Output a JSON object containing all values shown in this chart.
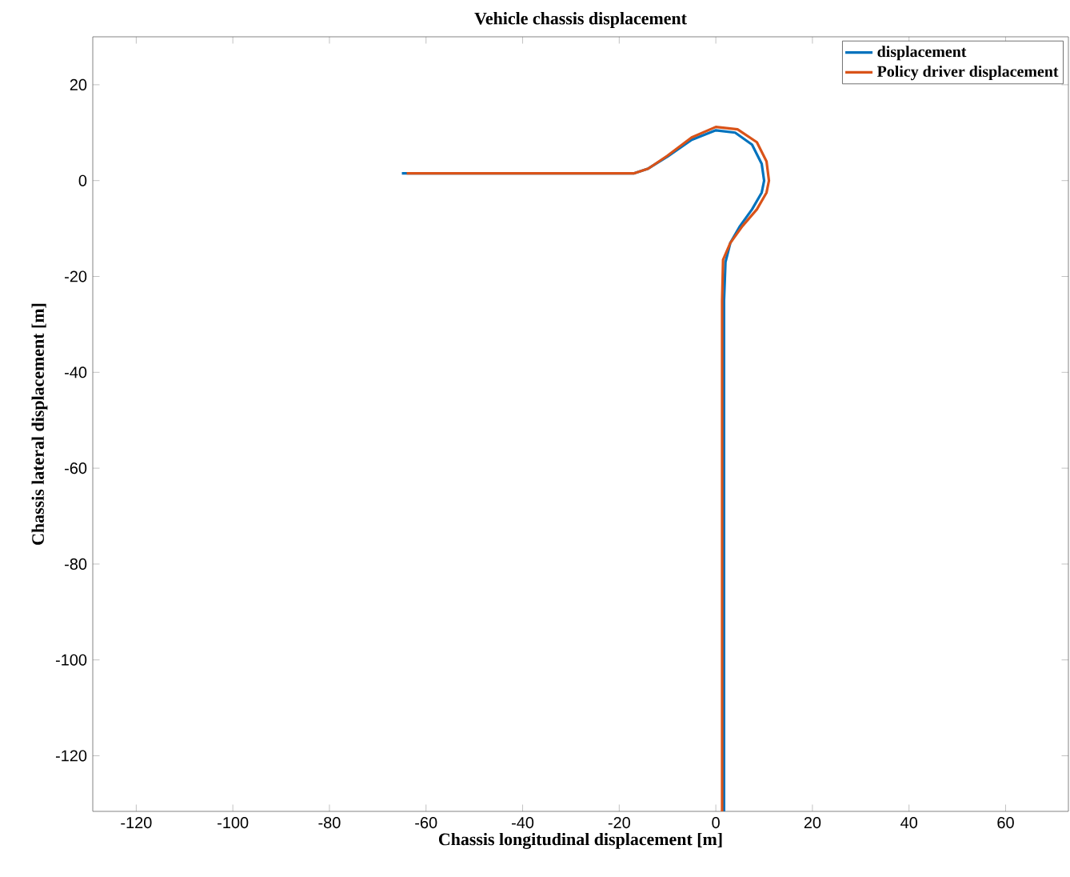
{
  "chart_data": {
    "type": "line",
    "title": "Vehicle chassis displacement",
    "xlabel": "Chassis longitudinal displacement [m]",
    "ylabel": "Chassis lateral displacement [m]",
    "xlim": [
      -129,
      73
    ],
    "ylim": [
      -131.6,
      30
    ],
    "xticks": [
      -120,
      -100,
      -80,
      -60,
      -40,
      -20,
      0,
      20,
      40,
      60
    ],
    "yticks": [
      -120,
      -100,
      -80,
      -60,
      -40,
      -20,
      0,
      20
    ],
    "grid": false,
    "legend": "top right",
    "line_style": "solid",
    "marker": "none",
    "series": [
      {
        "name": "displacement",
        "color": "#0072bd",
        "x": [
          -65,
          -17,
          -14,
          -10,
          -5,
          0,
          4,
          7.5,
          9.5,
          10,
          9.5,
          7.5,
          5,
          3,
          2,
          1.7,
          1.7
        ],
        "values": [
          1.5,
          1.5,
          2.5,
          5,
          8.5,
          10.5,
          10,
          7.5,
          3.5,
          0,
          -2.5,
          -6,
          -9.5,
          -13,
          -17,
          -25,
          -131.6
        ]
      },
      {
        "name": "Policy driver displacement",
        "color": "#d95319",
        "x": [
          -64,
          -17,
          -14,
          -10,
          -5,
          0,
          4.5,
          8.5,
          10.5,
          11,
          10.5,
          8.5,
          5.5,
          3,
          1.5,
          1.3,
          1.3
        ],
        "values": [
          1.5,
          1.5,
          2.5,
          5.2,
          9,
          11.2,
          10.7,
          8,
          4,
          0,
          -2.5,
          -6,
          -9.5,
          -13,
          -16.5,
          -25,
          -131.6
        ]
      }
    ]
  }
}
